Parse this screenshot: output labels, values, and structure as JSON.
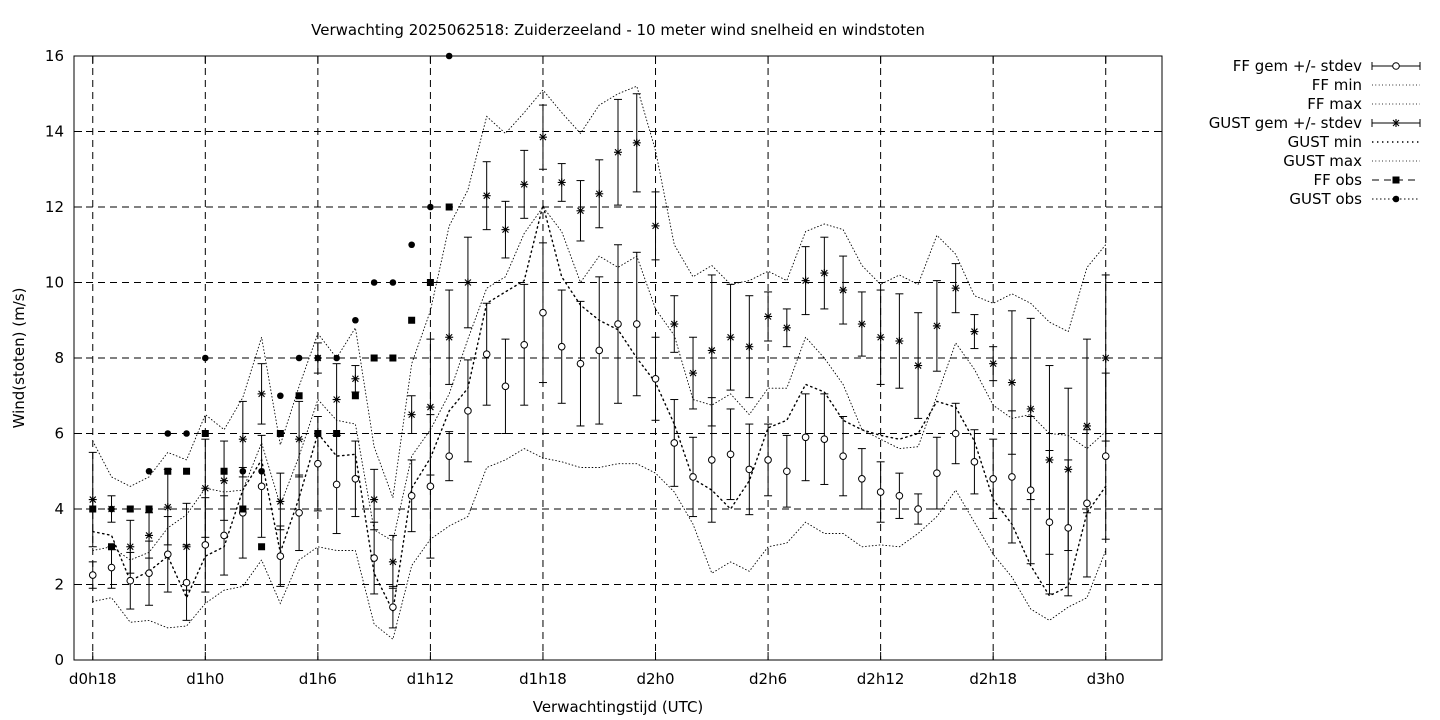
{
  "chart_data": {
    "type": "line",
    "title": "Verwachting 2025062518: Zuiderzeeland - 10 meter wind snelheid en windstoten",
    "xlabel": "Verwachtingstijd (UTC)",
    "ylabel": "Wind(stoten) (m/s)",
    "ylim": [
      0,
      16
    ],
    "xlim": [
      17,
      75
    ],
    "grid": true,
    "legend_position": "outside-right",
    "y_ticks": [
      "0",
      "2",
      "4",
      "6",
      "8",
      "10",
      "12",
      "14",
      "16"
    ],
    "x_ticks": [
      {
        "x": 18,
        "label": "d0h18"
      },
      {
        "x": 24,
        "label": "d1h0"
      },
      {
        "x": 30,
        "label": "d1h6"
      },
      {
        "x": 36,
        "label": "d1h12"
      },
      {
        "x": 42,
        "label": "d1h18"
      },
      {
        "x": 48,
        "label": "d2h0"
      },
      {
        "x": 54,
        "label": "d2h6"
      },
      {
        "x": 60,
        "label": "d2h12"
      },
      {
        "x": 66,
        "label": "d2h18"
      },
      {
        "x": 72,
        "label": "d3h0"
      }
    ],
    "legend": [
      {
        "label": "FF gem +/- stdev",
        "style": "errorbar-circle"
      },
      {
        "label": "FF min",
        "style": "dotted"
      },
      {
        "label": "FF max",
        "style": "dotted"
      },
      {
        "label": "GUST gem +/- stdev",
        "style": "errorbar-star"
      },
      {
        "label": "GUST min",
        "style": "dotted-coarse"
      },
      {
        "label": "GUST max",
        "style": "dotted"
      },
      {
        "label": "FF obs",
        "style": "dash-square"
      },
      {
        "label": "GUST obs",
        "style": "dot-circle"
      }
    ],
    "ff": {
      "x": [
        18,
        19,
        20,
        21,
        22,
        23,
        24,
        25,
        26,
        27,
        28,
        29,
        30,
        31,
        32,
        33,
        34,
        35,
        36,
        37,
        38,
        39,
        40,
        41,
        42,
        43,
        44,
        45,
        46,
        47,
        48,
        49,
        50,
        51,
        52,
        53,
        54,
        55,
        56,
        57,
        58,
        59,
        60,
        61,
        62,
        63,
        64,
        65,
        66,
        67,
        68,
        69,
        70,
        71,
        72
      ],
      "mean": [
        2.25,
        2.45,
        2.1,
        2.3,
        2.8,
        2.05,
        3.05,
        3.3,
        3.9,
        4.6,
        2.75,
        3.9,
        5.2,
        4.65,
        4.8,
        2.7,
        1.4,
        4.35,
        4.6,
        5.4,
        6.6,
        8.1,
        7.25,
        8.35,
        9.2,
        8.3,
        7.85,
        8.2,
        8.9,
        8.9,
        7.45,
        5.75,
        4.85,
        5.3,
        5.45,
        5.05,
        5.3,
        5.0,
        5.9,
        5.85,
        5.4,
        4.8,
        4.45,
        4.35,
        4.0,
        4.95,
        6.0,
        5.25,
        4.8,
        4.85,
        4.5,
        3.65,
        3.5,
        4.15,
        5.4
      ],
      "stdev": [
        0.35,
        0.55,
        0.75,
        0.85,
        1.0,
        1.0,
        1.25,
        1.05,
        1.2,
        1.35,
        0.8,
        1.0,
        1.25,
        1.3,
        1.0,
        0.95,
        0.55,
        0.95,
        1.9,
        0.65,
        1.35,
        1.35,
        1.25,
        1.6,
        1.85,
        1.5,
        1.65,
        1.95,
        2.1,
        1.9,
        1.1,
        1.15,
        1.05,
        1.65,
        1.2,
        1.2,
        0.95,
        0.95,
        1.15,
        1.2,
        1.05,
        0.8,
        0.8,
        0.6,
        0.4,
        0.95,
        0.8,
        0.85,
        1.05,
        1.75,
        1.95,
        1.9,
        1.8,
        1.95,
        2.2
      ],
      "min": [
        1.55,
        1.65,
        1.0,
        1.05,
        0.85,
        0.9,
        1.5,
        1.85,
        1.95,
        2.65,
        1.5,
        2.65,
        3.0,
        2.9,
        2.9,
        0.95,
        0.55,
        2.5,
        3.2,
        3.55,
        3.8,
        5.1,
        5.3,
        5.6,
        5.35,
        5.25,
        5.1,
        5.1,
        5.2,
        5.2,
        4.95,
        4.45,
        3.6,
        2.3,
        2.6,
        2.35,
        3.0,
        3.1,
        3.65,
        3.35,
        3.35,
        3.0,
        3.05,
        3.0,
        3.35,
        3.8,
        4.5,
        3.65,
        2.8,
        2.2,
        1.35,
        1.05,
        1.4,
        1.65,
        2.9
      ],
      "max": [
        2.9,
        3.0,
        2.65,
        2.85,
        3.5,
        3.85,
        4.55,
        4.45,
        4.5,
        5.75,
        4.1,
        5.4,
        6.9,
        6.35,
        6.25,
        3.45,
        3.15,
        5.4,
        6.1,
        7.05,
        8.5,
        9.85,
        10.15,
        11.3,
        12.0,
        11.35,
        10.0,
        10.7,
        10.4,
        10.7,
        9.3,
        8.6,
        6.9,
        6.75,
        7.05,
        6.5,
        7.2,
        7.2,
        8.55,
        8.0,
        7.3,
        6.1,
        5.85,
        5.6,
        5.65,
        7.0,
        8.4,
        7.7,
        6.75,
        6.4,
        6.5,
        6.0,
        5.95,
        5.6,
        6.05
      ]
    },
    "gust": {
      "x": [
        18,
        19,
        20,
        21,
        22,
        23,
        24,
        25,
        26,
        27,
        28,
        29,
        30,
        31,
        32,
        33,
        34,
        35,
        36,
        37,
        38,
        39,
        40,
        41,
        42,
        43,
        44,
        45,
        46,
        47,
        48,
        49,
        50,
        51,
        52,
        53,
        54,
        55,
        56,
        57,
        58,
        59,
        60,
        61,
        62,
        63,
        64,
        65,
        66,
        67,
        68,
        69,
        70,
        71,
        72
      ],
      "mean": [
        4.25,
        4.0,
        3.0,
        3.3,
        4.05,
        3.0,
        4.55,
        4.75,
        5.85,
        7.05,
        4.2,
        5.85,
        8.0,
        6.9,
        7.45,
        4.25,
        2.6,
        6.5,
        6.7,
        8.55,
        10.0,
        12.3,
        11.4,
        12.6,
        13.85,
        12.65,
        11.9,
        12.35,
        13.45,
        13.7,
        11.5,
        8.9,
        7.6,
        8.2,
        8.55,
        8.3,
        9.1,
        8.8,
        10.05,
        10.25,
        9.8,
        8.9,
        8.55,
        8.45,
        7.8,
        8.85,
        9.85,
        8.7,
        7.85,
        7.35,
        6.65,
        5.3,
        5.05,
        6.2,
        8.0
      ],
      "stdev": [
        1.25,
        0.35,
        0.7,
        0.6,
        1.0,
        1.15,
        1.3,
        1.05,
        1.0,
        0.8,
        0.75,
        1.0,
        0.4,
        0.95,
        0.35,
        0.8,
        0.7,
        0.5,
        1.8,
        1.25,
        1.2,
        0.9,
        0.75,
        0.9,
        0.85,
        0.5,
        0.8,
        0.9,
        1.4,
        1.3,
        0.9,
        0.75,
        0.95,
        2.0,
        1.4,
        1.35,
        0.65,
        0.5,
        0.9,
        0.95,
        0.9,
        0.85,
        1.25,
        1.25,
        1.4,
        1.2,
        0.65,
        0.45,
        0.45,
        1.9,
        2.4,
        2.5,
        2.15,
        2.3,
        2.2
      ],
      "min": [
        3.4,
        3.3,
        2.1,
        2.35,
        2.75,
        1.65,
        2.75,
        3.0,
        4.5,
        5.3,
        2.85,
        4.3,
        6.0,
        5.4,
        5.45,
        2.3,
        1.3,
        4.55,
        5.35,
        6.6,
        7.2,
        9.45,
        9.75,
        10.05,
        12.05,
        10.15,
        9.4,
        9.0,
        8.75,
        8.0,
        7.35,
        6.25,
        4.8,
        4.5,
        4.0,
        4.75,
        6.15,
        6.35,
        7.3,
        7.1,
        6.35,
        6.1,
        5.95,
        5.85,
        6.0,
        6.85,
        6.7,
        5.8,
        4.25,
        3.6,
        2.5,
        1.7,
        1.95,
        3.9,
        4.6
      ],
      "max": [
        5.8,
        4.85,
        4.6,
        4.85,
        5.5,
        5.3,
        6.5,
        6.1,
        6.95,
        8.55,
        5.7,
        7.25,
        8.65,
        8.0,
        8.8,
        5.65,
        4.3,
        7.85,
        9.25,
        11.5,
        12.45,
        14.4,
        13.95,
        14.5,
        15.1,
        14.5,
        13.95,
        14.7,
        15.0,
        15.2,
        13.5,
        11.0,
        10.15,
        10.45,
        9.95,
        10.05,
        10.3,
        10.05,
        11.35,
        11.55,
        11.4,
        10.45,
        9.95,
        10.2,
        9.95,
        11.25,
        10.75,
        9.65,
        9.45,
        9.7,
        9.45,
        8.95,
        8.7,
        10.4,
        11.0
      ]
    },
    "ff_obs": {
      "x": [
        18,
        19,
        20,
        21,
        22,
        23,
        24,
        25,
        26,
        27,
        28,
        29,
        30,
        31,
        32,
        33,
        34,
        35,
        36,
        37
      ],
      "y": [
        4,
        3,
        4,
        4,
        5,
        5,
        6,
        5,
        4,
        3,
        6,
        7,
        6,
        6,
        7,
        8,
        8,
        9,
        10,
        12
      ]
    },
    "gust_obs": {
      "x": [
        18,
        19,
        21,
        22,
        23,
        24,
        25,
        26,
        27,
        28,
        29,
        30,
        31,
        32,
        33,
        34,
        35,
        36,
        37
      ],
      "y": [
        4,
        4,
        5,
        6,
        6,
        8,
        5,
        5,
        5,
        7,
        8,
        8,
        8,
        9,
        10,
        10,
        11,
        12,
        16
      ]
    }
  }
}
